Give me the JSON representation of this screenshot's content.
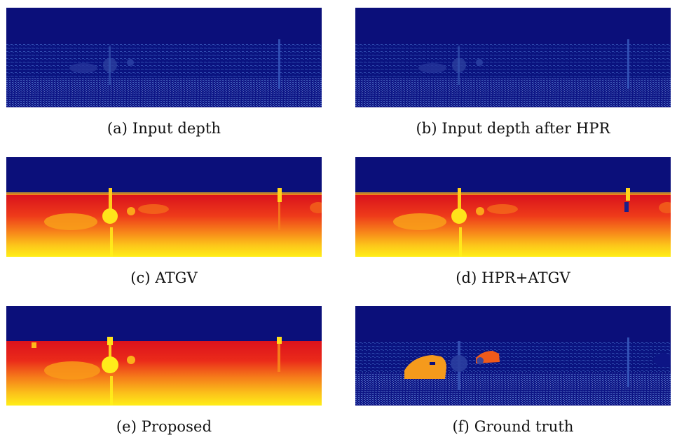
{
  "figure": {
    "panels": [
      {
        "id": "a",
        "caption": "(a) Input depth"
      },
      {
        "id": "b",
        "caption": "(b) Input depth after HPR"
      },
      {
        "id": "c",
        "caption": "(c) ATGV"
      },
      {
        "id": "d",
        "caption": "(d) HPR+ATGV"
      },
      {
        "id": "e",
        "caption": "(e) Proposed"
      },
      {
        "id": "f",
        "caption": "(f) Ground truth"
      }
    ]
  },
  "colors": {
    "sky": "#0b0f7a",
    "sparse_bg": "#0a1380",
    "dense_red": "#e0141c",
    "dense_orange": "#f7761a",
    "dense_yellow": "#ffee18",
    "car_orange": "#f59a1c",
    "car_red_orange": "#f05a1a"
  }
}
